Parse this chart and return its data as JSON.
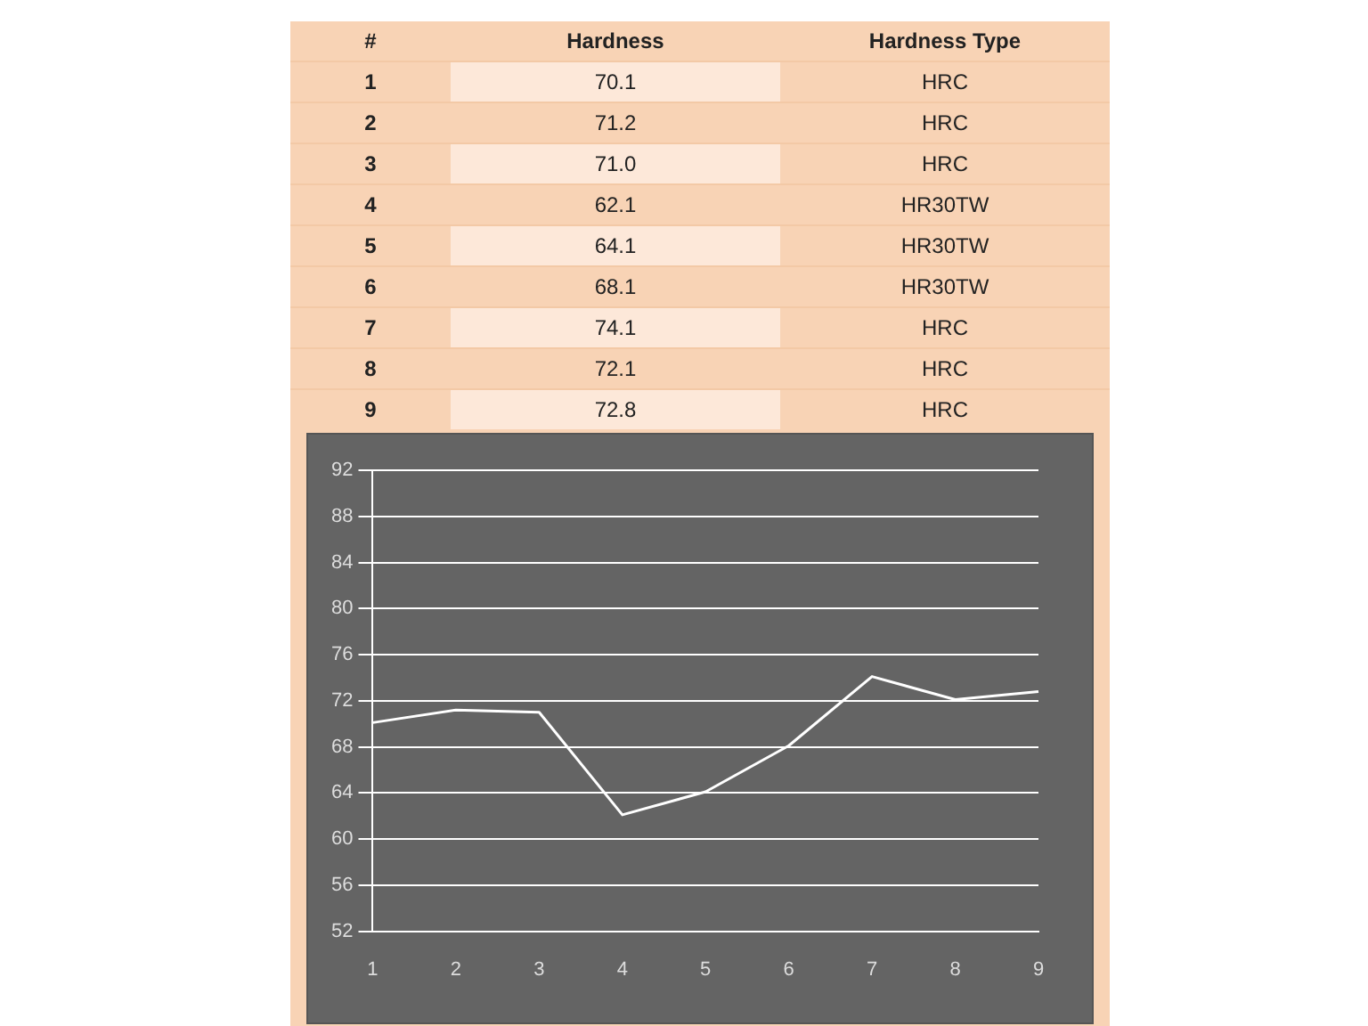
{
  "chart_data": {
    "type": "line",
    "categories": [
      "1",
      "2",
      "3",
      "4",
      "5",
      "6",
      "7",
      "8",
      "9"
    ],
    "series": [
      {
        "color": "#ffffff",
        "values": [
          70.1,
          71.2,
          71.0,
          62.1,
          64.1,
          68.1,
          74.1,
          72.1,
          72.8
        ]
      }
    ],
    "ylim": [
      52,
      92
    ],
    "yticks": [
      52,
      56,
      60,
      64,
      68,
      72,
      76,
      80,
      84,
      88,
      92
    ],
    "grid": "y",
    "marker": "none",
    "annotations": [
      "#",
      "Hardness",
      "Hardness Type",
      "70.1",
      "71.2",
      "71.0",
      "62.1",
      "64.1",
      "68.1",
      "74.1",
      "72.1",
      "72.8",
      "HRC",
      "HRC",
      "HRC",
      "HR30TW",
      "HR30TW",
      "HR30TW",
      "HRC",
      "HRC",
      "HRC"
    ]
  }
}
